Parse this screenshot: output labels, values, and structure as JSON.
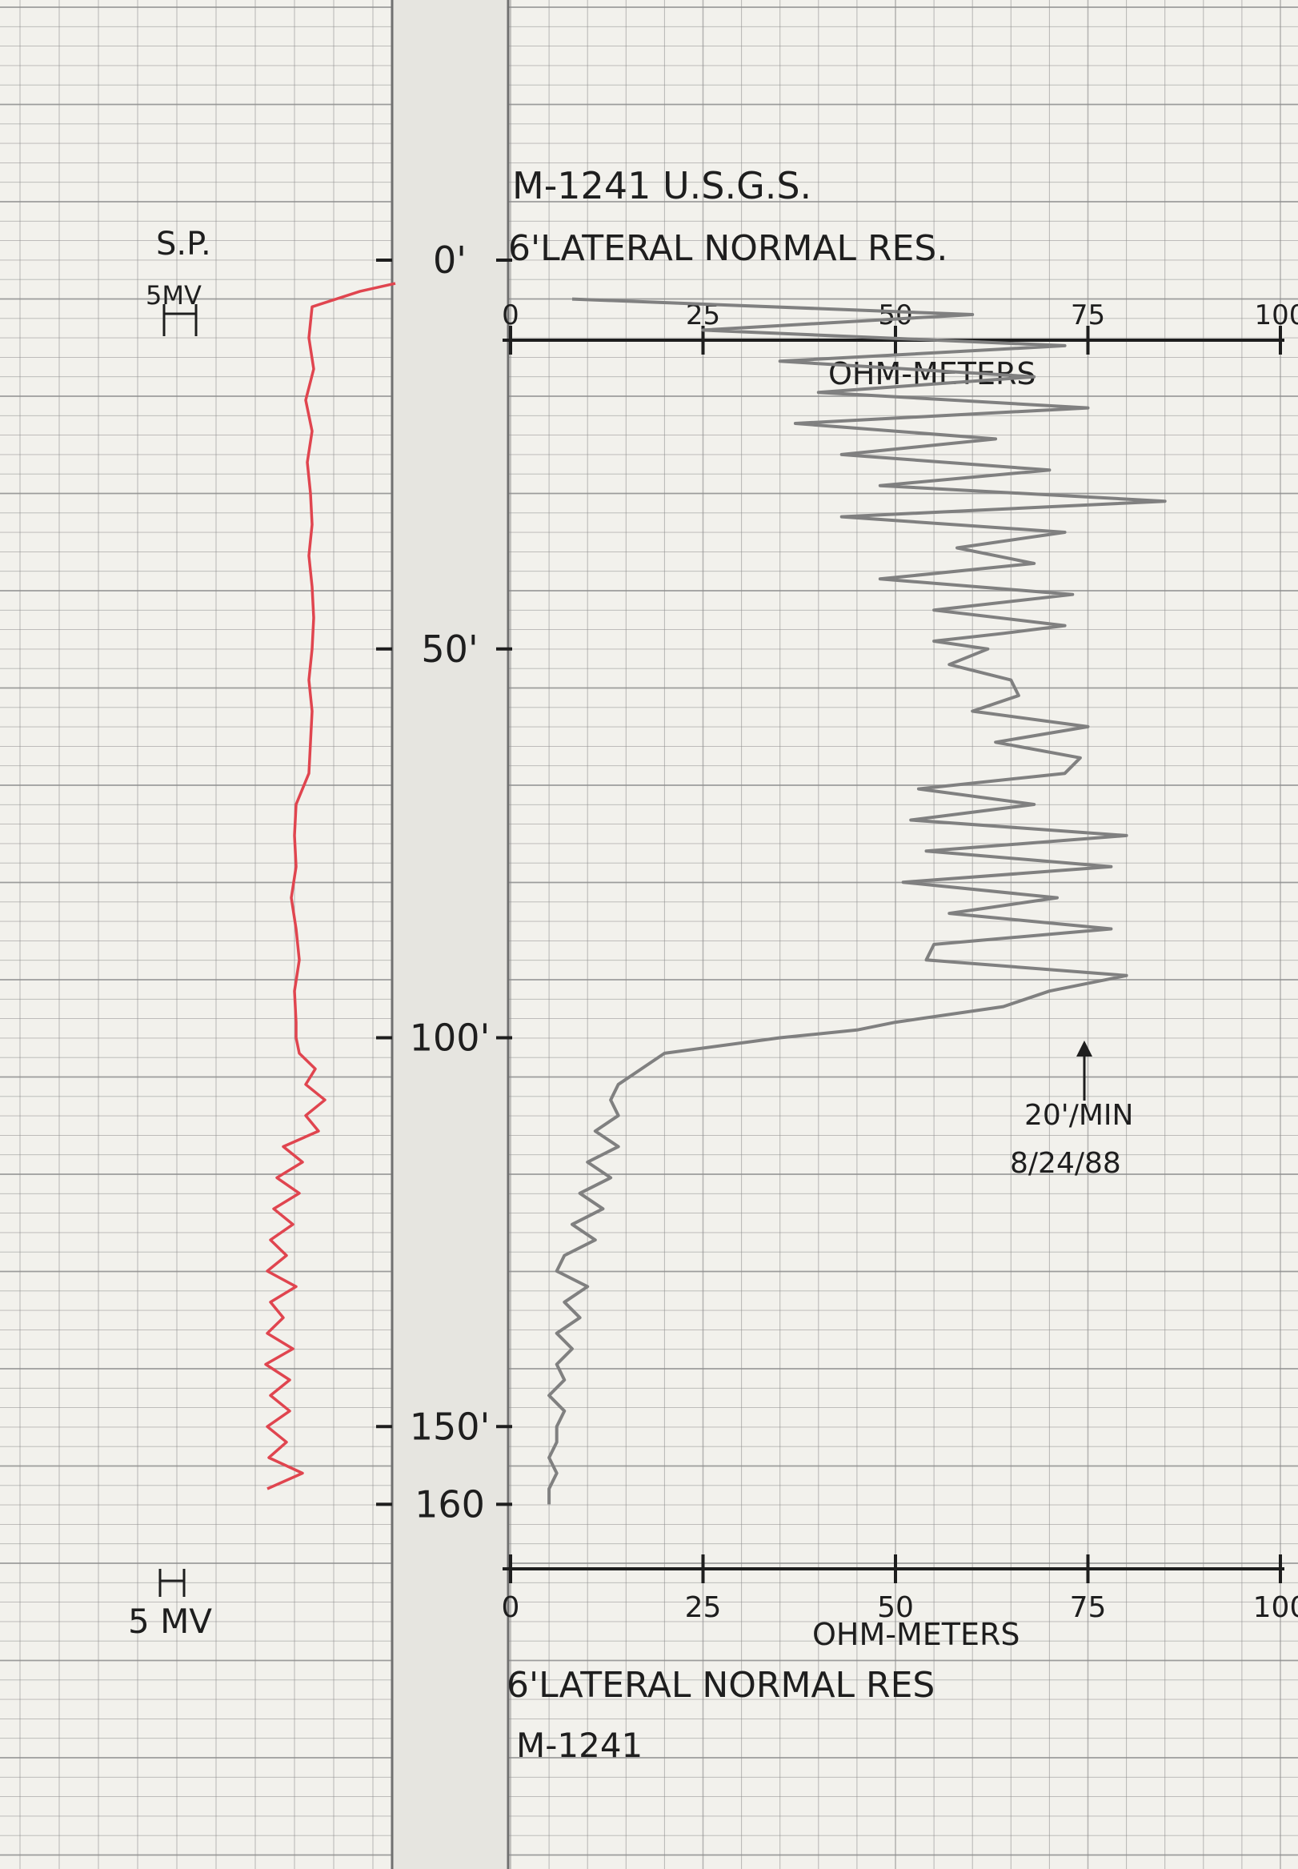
{
  "header": {
    "well_id_line": "M-1241 U.S.G.S.",
    "curve_title": "6'LATERAL NORMAL RES.",
    "sp_label": "S.P.",
    "sp_scale_top": "5MV",
    "sp_scale_bottom": "5 MV",
    "ohm_label": "OHM-METERS",
    "footer_curve_title": "6'LATERAL NORMAL RES",
    "footer_well_id": "M-1241",
    "note_speed": "20'/MIN",
    "note_date": "8/24/88"
  },
  "colors": {
    "sp_curve": "#e0454f",
    "resistivity_curve": "#808080",
    "grid": "#8d8d8d",
    "paper": "#f2f1ec",
    "center_track": "#e6e5e0"
  },
  "chart_data": {
    "type": "line",
    "title": "6'LATERAL NORMAL RES.",
    "xlabel": "OHM-METERS",
    "x_ticks": [
      "0",
      "25",
      "50",
      "75",
      "100"
    ],
    "xlim": [
      0,
      100
    ],
    "depth_ticks": [
      "0'",
      "50'",
      "100'",
      "150'",
      "160"
    ],
    "depth_unit": "ft",
    "ylim": [
      0,
      160
    ],
    "grid": true,
    "series": [
      {
        "name": "6'LATERAL NORMAL RES.",
        "depth": [
          5,
          7,
          9,
          11,
          13,
          15,
          17,
          19,
          21,
          23,
          25,
          27,
          29,
          31,
          33,
          35,
          37,
          39,
          41,
          43,
          45,
          47,
          48,
          49,
          50,
          52,
          54,
          56,
          58,
          60,
          62,
          64,
          66,
          68,
          70,
          72,
          74,
          76,
          78,
          80,
          82,
          84,
          86,
          88,
          90,
          92,
          94,
          96,
          98,
          99,
          100,
          102,
          104,
          106,
          108,
          110,
          112,
          114,
          116,
          118,
          120,
          122,
          124,
          126,
          128,
          130,
          132,
          134,
          136,
          138,
          140,
          142,
          144,
          146,
          148,
          150,
          152,
          154,
          156,
          158,
          160
        ],
        "values": [
          8,
          60,
          25,
          72,
          35,
          68,
          40,
          75,
          37,
          63,
          43,
          70,
          48,
          85,
          43,
          72,
          58,
          68,
          48,
          73,
          55,
          72,
          64,
          55,
          62,
          57,
          65,
          66,
          60,
          75,
          63,
          74,
          72,
          53,
          68,
          52,
          80,
          54,
          78,
          51,
          71,
          57,
          78,
          55,
          54,
          80,
          70,
          64,
          50,
          45,
          35,
          20,
          17,
          14,
          13,
          14,
          11,
          14,
          10,
          13,
          9,
          12,
          8,
          11,
          7,
          6,
          10,
          7,
          9,
          6,
          8,
          6,
          7,
          5,
          7,
          6,
          6,
          5,
          6,
          5,
          5
        ]
      },
      {
        "name": "S.P.",
        "depth": [
          3,
          4,
          6,
          10,
          14,
          18,
          22,
          26,
          30,
          34,
          38,
          42,
          46,
          50,
          54,
          58,
          62,
          66,
          70,
          74,
          78,
          82,
          86,
          90,
          94,
          98,
          100,
          102,
          104,
          106,
          108,
          110,
          112,
          114,
          116,
          118,
          120,
          122,
          124,
          126,
          128,
          130,
          132,
          134,
          136,
          138,
          140,
          142,
          144,
          146,
          148,
          150,
          152,
          154,
          156,
          158
        ],
        "values": [
          5.2,
          3.0,
          0.0,
          -0.2,
          0.1,
          -0.4,
          0.0,
          -0.3,
          -0.1,
          0.0,
          -0.2,
          0.0,
          0.1,
          0.0,
          -0.2,
          0.0,
          -0.1,
          -0.2,
          -1.0,
          -1.1,
          -1.0,
          -1.3,
          -1.0,
          -0.8,
          -1.1,
          -1.0,
          -1.0,
          -0.8,
          0.2,
          -0.4,
          0.8,
          -0.4,
          0.4,
          -1.8,
          -0.6,
          -2.2,
          -0.8,
          -2.4,
          -1.2,
          -2.6,
          -1.6,
          -2.8,
          -1.0,
          -2.6,
          -1.8,
          -2.8,
          -1.2,
          -2.9,
          -1.4,
          -2.6,
          -1.4,
          -2.8,
          -1.6,
          -2.7,
          -0.6,
          -2.8
        ]
      }
    ]
  }
}
